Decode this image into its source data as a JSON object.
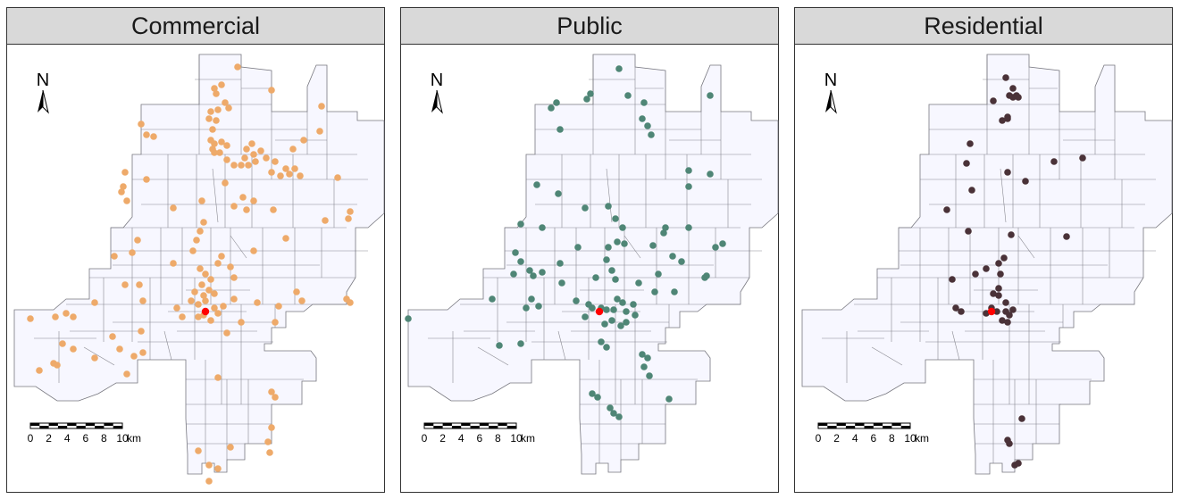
{
  "colors": {
    "commercial": "#EEAA6A",
    "public": "#4F8676",
    "residential": "#4A3238",
    "centroid": "#FF0000",
    "land": "#F7F7FF",
    "boundary": "#77777F"
  },
  "north_label": "N",
  "scale_bar": {
    "ticks": [
      "0",
      "2",
      "4",
      "6",
      "8",
      "10"
    ],
    "unit": "km"
  },
  "panels": [
    {
      "key": "commercial",
      "title": "Commercial"
    },
    {
      "key": "public",
      "title": "Public"
    },
    {
      "key": "residential",
      "title": "Residential"
    }
  ]
}
